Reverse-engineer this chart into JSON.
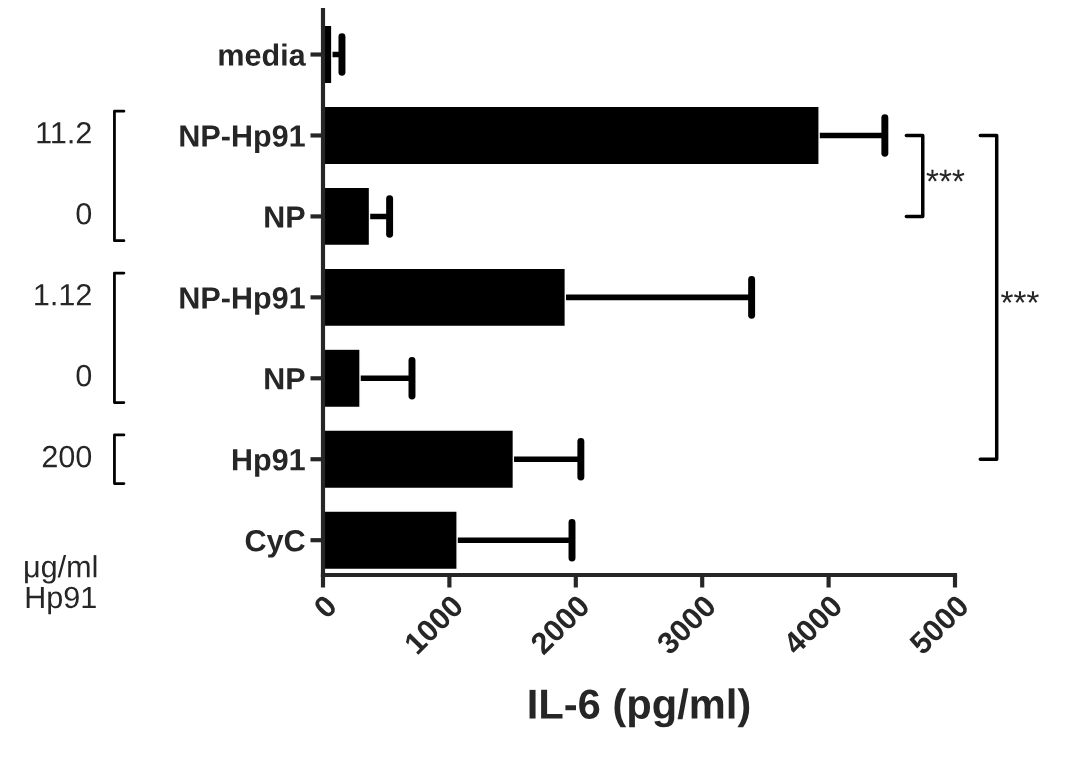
{
  "chart_data": {
    "type": "bar",
    "orientation": "horizontal",
    "xlabel": "IL-6 (pg/ml)",
    "categories": [
      "media",
      "NP-Hp91",
      "NP",
      "NP-Hp91",
      "NP",
      "Hp91",
      "CyC"
    ],
    "values": [
      70,
      3925,
      368,
      1917,
      293,
      1506,
      1061
    ],
    "errors": [
      [
        70,
        150
      ],
      [
        3925,
        4445
      ],
      [
        368,
        527
      ],
      [
        1917,
        3391
      ],
      [
        293,
        704
      ],
      [
        1506,
        2040
      ],
      [
        1061,
        1970
      ]
    ],
    "color": "#000000",
    "xlim": [
      0,
      5000
    ],
    "xticks": [
      0,
      1000,
      2000,
      3000,
      4000,
      5000
    ],
    "grid": false,
    "legend": false,
    "annotations": [
      "11.2",
      "0",
      "1.12",
      "0",
      "200",
      "μg/ml\nHp91",
      "***",
      "***"
    ]
  }
}
